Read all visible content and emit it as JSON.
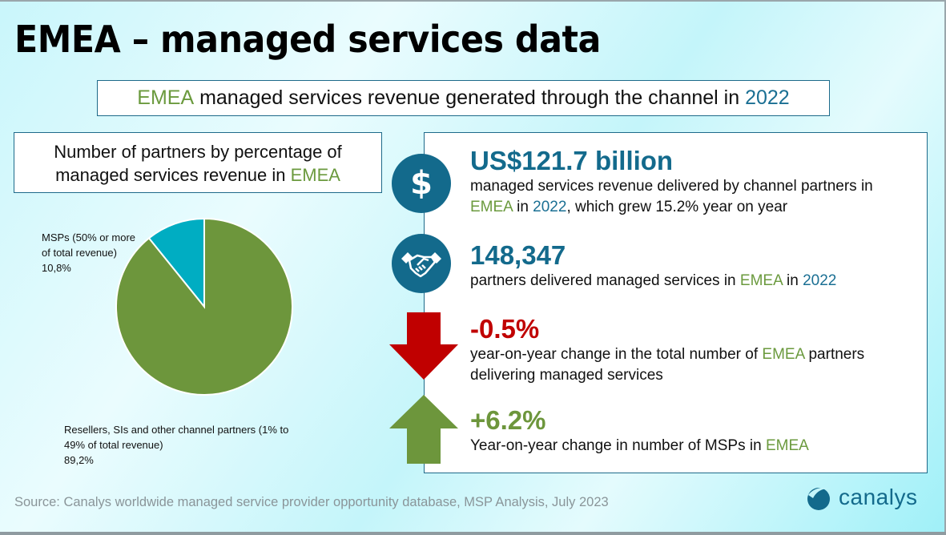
{
  "title": "EMEA – managed services data",
  "subtitle": {
    "part1": "EMEA",
    "part2": " managed services revenue generated through the channel in ",
    "part3": "2022"
  },
  "chart_title": {
    "line1": "Number of partners by percentage of",
    "line2_prefix": "managed services revenue in ",
    "line2_highlight": "EMEA"
  },
  "chart_data": {
    "type": "pie",
    "title": "Number of partners by percentage of managed services revenue in EMEA",
    "categories": [
      "MSPs (50% or more of total revenue)",
      "Resellers, SIs and other channel partners (1% to 49% of total revenue)"
    ],
    "values": [
      10.8,
      89.2
    ],
    "colors": [
      "#00adc2",
      "#6d963c"
    ],
    "labels": [
      {
        "name_line1": "MSPs (50% or more",
        "name_line2": "of total revenue)",
        "value": "10,8%"
      },
      {
        "name_line1": "Resellers, SIs and other channel partners (1% to",
        "name_line2": "49% of total revenue)",
        "value": "89,2%"
      }
    ],
    "start_angle": "top, counter-clockwise for first slice",
    "legend": "none"
  },
  "stats": [
    {
      "icon": "dollar-icon",
      "headline": "US$121.7 billion",
      "headline_color": "#136a8c",
      "line1": "managed services revenue delivered by channel partners in",
      "line2_a": "EMEA",
      "line2_b": " in ",
      "line2_c": "2022",
      "line2_d": ", which grew 15.2% year on year"
    },
    {
      "icon": "handshake-icon",
      "headline": "148,347",
      "headline_color": "#136a8c",
      "line1_a": "partners delivered managed services in ",
      "line1_b": "EMEA",
      "line1_c": " in ",
      "line1_d": "2022"
    },
    {
      "icon": "arrow-down-icon",
      "headline": "-0.5%",
      "headline_color": "#c00000",
      "line1_a": "year-on-year change in the total number of ",
      "line1_b": "EMEA",
      "line1_c": " partners",
      "line2": "delivering managed services"
    },
    {
      "icon": "arrow-up-icon",
      "headline": "+6.2%",
      "headline_color": "#6d963c",
      "line1_a": "Year-on-year change in number of MSPs in ",
      "line1_b": "EMEA"
    }
  ],
  "source": "Source: Canalys worldwide managed service provider opportunity database, MSP Analysis, July 2023",
  "logo": {
    "text": "canalys",
    "color": "#136a8c"
  }
}
